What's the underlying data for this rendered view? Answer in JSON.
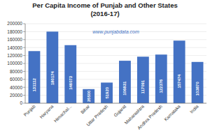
{
  "chart_data": {
    "type": "bar",
    "title": "Per Capita Income of Punjab and Other States\n(2016-17)",
    "annotations": [
      "www.punjabdata.com"
    ],
    "categories": [
      "Punjab",
      "Haryana",
      "Himachal...",
      "Bihar",
      "Uttar Pradesh",
      "Gujarat",
      "Maharashtra",
      "Andhra Pradesh",
      "Karnataka",
      "India"
    ],
    "values": [
      131112,
      180174,
      146073,
      35500,
      51920,
      106831,
      117091,
      122376,
      157474,
      103870
    ],
    "color": "#4472C4",
    "ylim": [
      0,
      200000
    ],
    "yticks": [
      0,
      20000,
      40000,
      60000,
      80000,
      100000,
      120000,
      140000,
      160000,
      180000,
      200000
    ],
    "grid": true,
    "data_labels": true
  }
}
